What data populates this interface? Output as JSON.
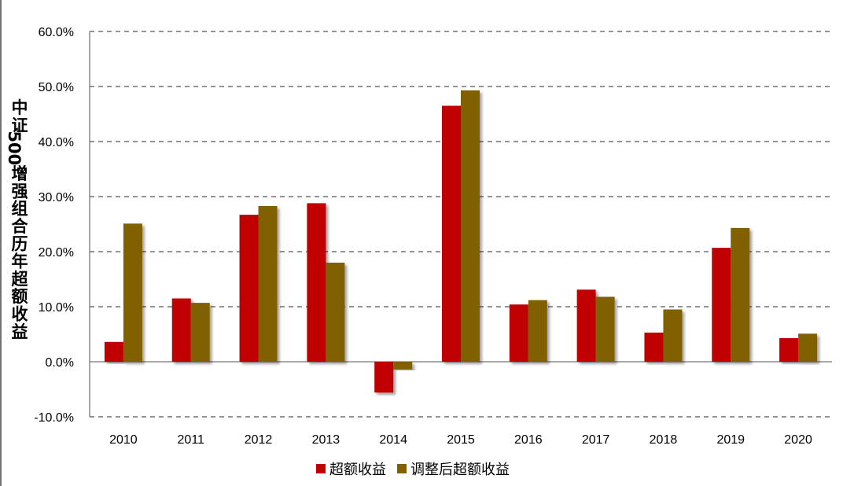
{
  "chart_data": {
    "type": "bar",
    "title": "",
    "xlabel": "",
    "ylabel": "中证500增强组合历年超额收益",
    "categories": [
      "2010",
      "2011",
      "2012",
      "2013",
      "2014",
      "2015",
      "2016",
      "2017",
      "2018",
      "2019",
      "2020"
    ],
    "series": [
      {
        "name": "超额收益",
        "color": "#C00000",
        "values": [
          3.6,
          11.5,
          26.7,
          28.8,
          -5.6,
          46.5,
          10.4,
          13.1,
          5.3,
          20.7,
          4.3
        ]
      },
      {
        "name": "调整后超额收益",
        "color": "#806000",
        "values": [
          25.1,
          10.7,
          28.3,
          18.0,
          -1.4,
          49.3,
          11.2,
          11.8,
          9.5,
          24.3,
          5.1
        ]
      }
    ],
    "ylim": [
      -10,
      60
    ],
    "yticks": [
      -10,
      0,
      10,
      20,
      30,
      40,
      50,
      60
    ],
    "ytick_labels": [
      "-10.0%",
      "0.0%",
      "10.0%",
      "20.0%",
      "30.0%",
      "40.0%",
      "50.0%",
      "60.0%"
    ],
    "grid": "dashed-horizontal",
    "legend_position": "bottom"
  }
}
